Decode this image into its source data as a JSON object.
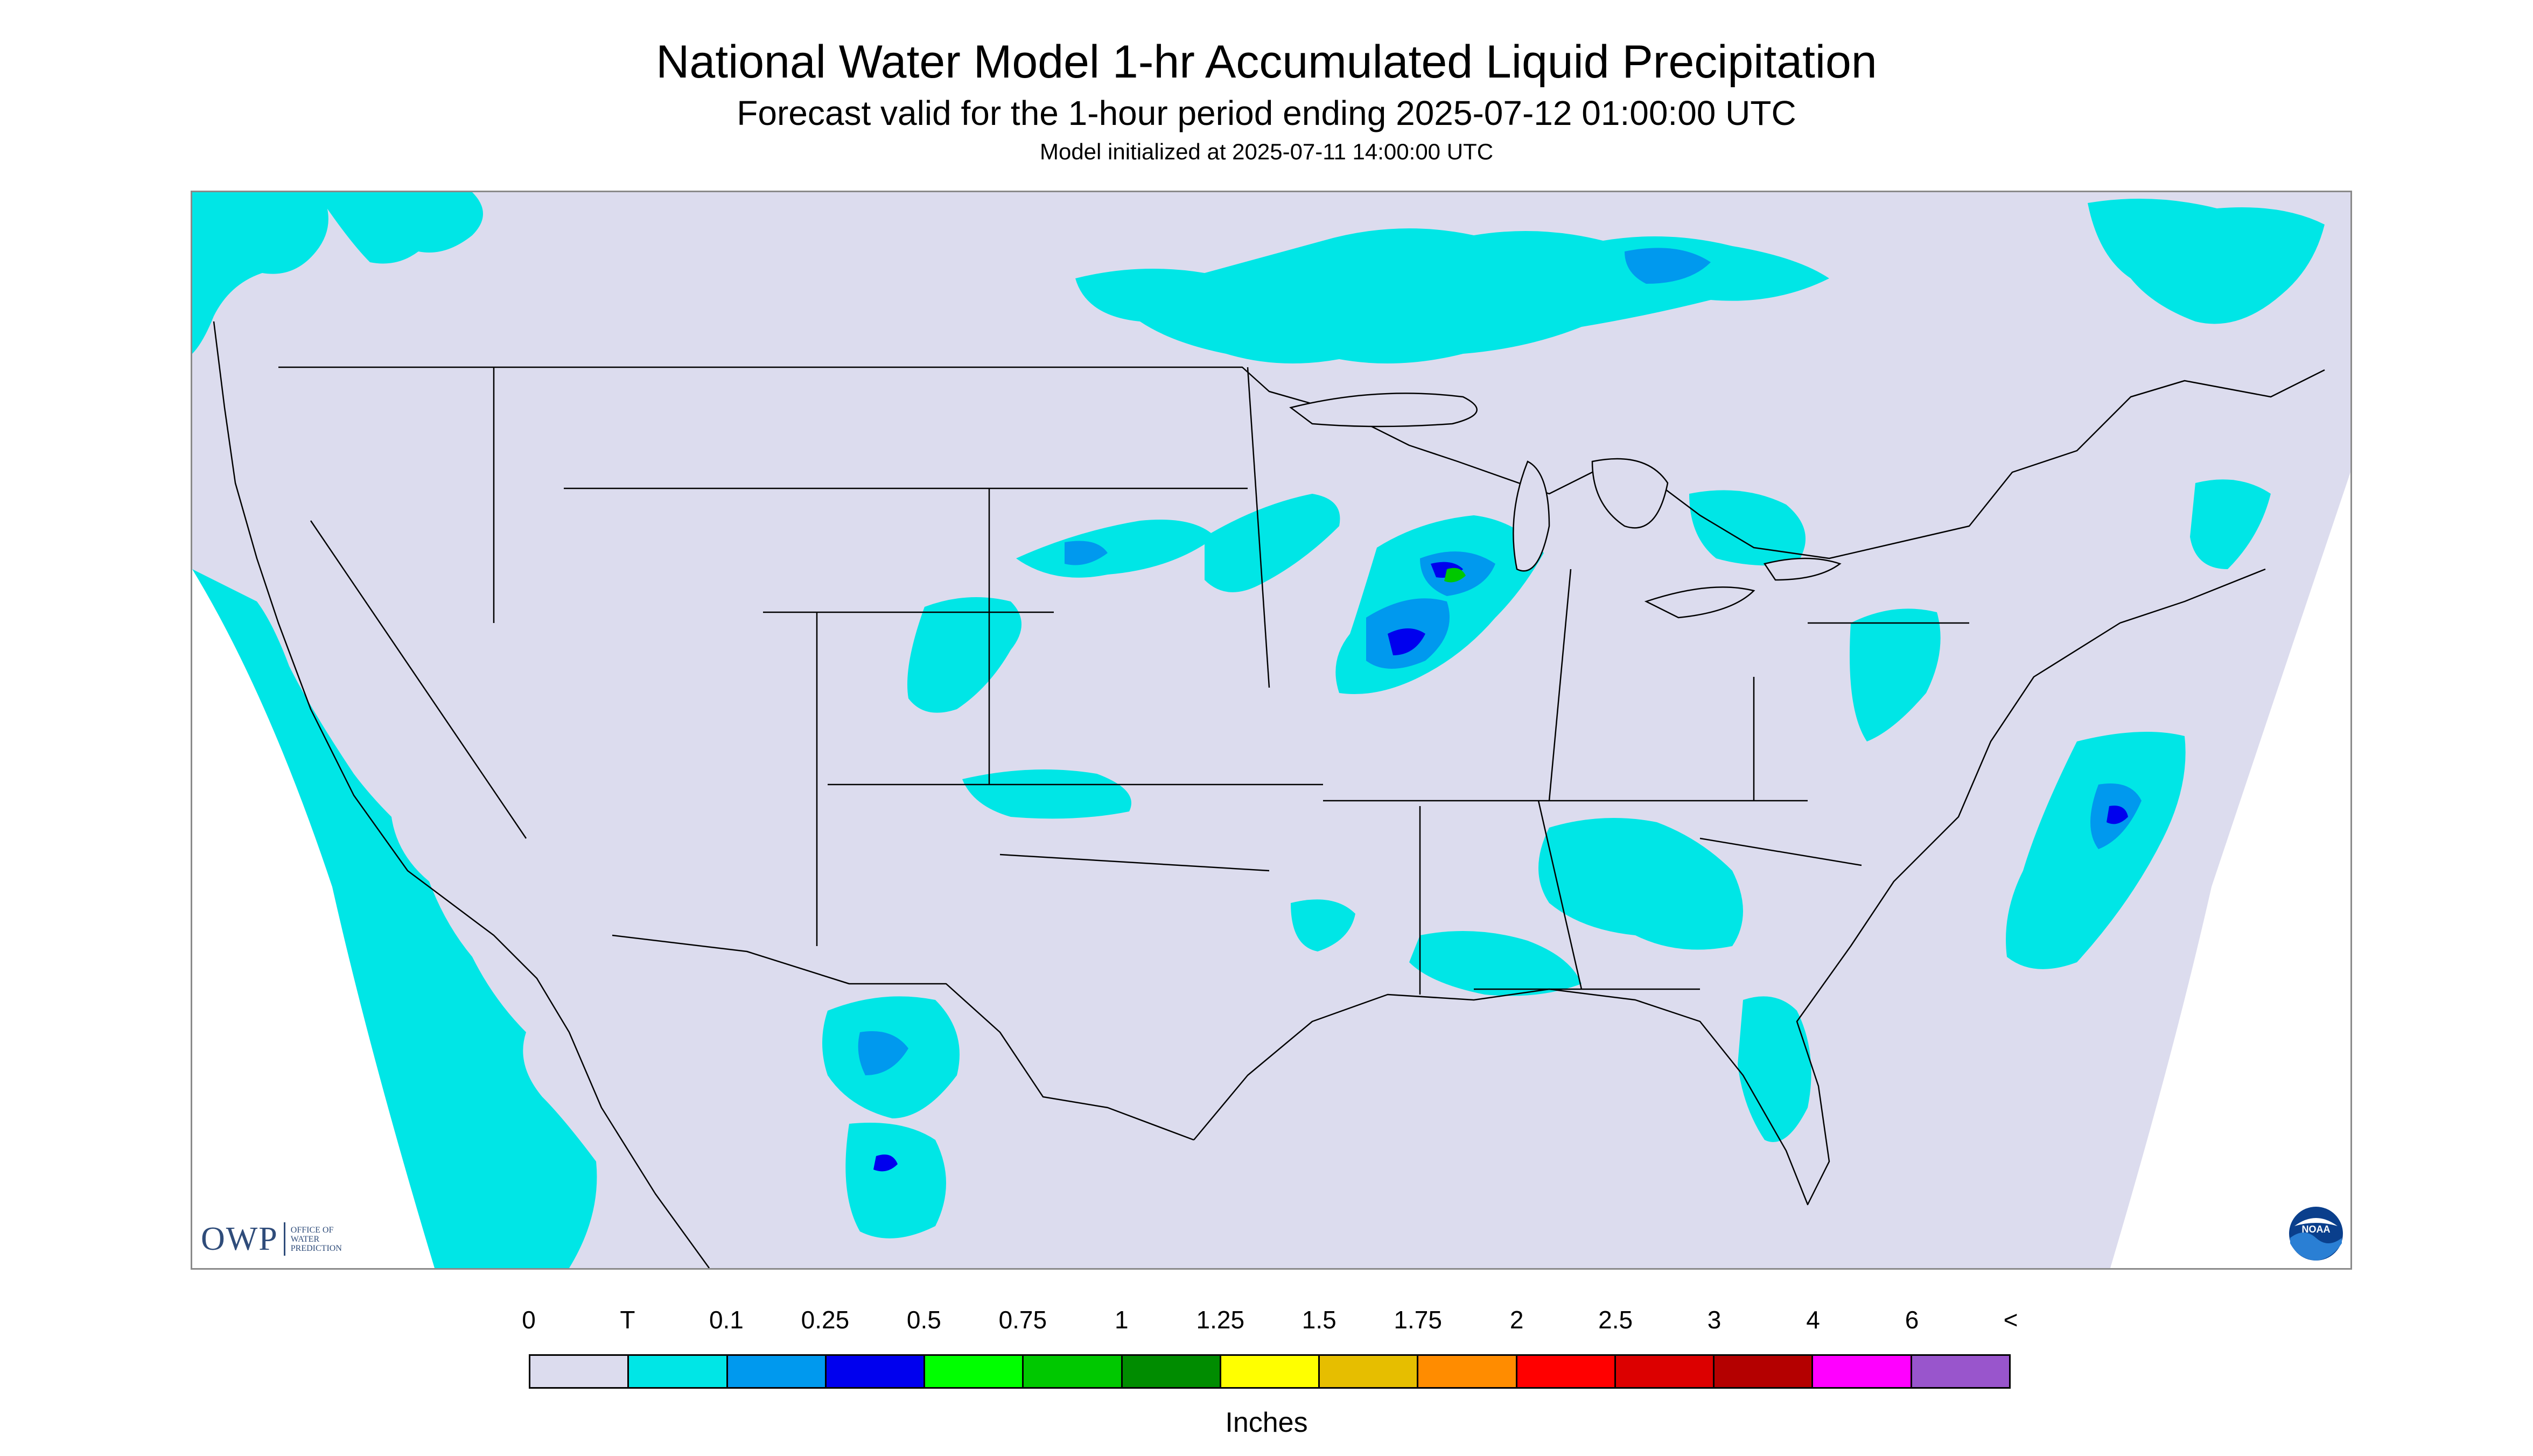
{
  "header": {
    "title": "National Water Model 1-hr Accumulated Liquid Precipitation",
    "subtitle": "Forecast valid for the 1-hour period ending 2025-07-12 01:00:00 UTC",
    "init_line": "Model initialized at 2025-07-11 14:00:00 UTC"
  },
  "map": {
    "background_color": "#dcdcee",
    "outside_color": "#ffffff",
    "boundary_color": "#000000"
  },
  "logos": {
    "owp_text": "OWP",
    "owp_sub_lines": [
      "OFFICE OF",
      "WATER",
      "PREDICTION"
    ],
    "noaa_text": "NOAA"
  },
  "legend": {
    "tick_labels": [
      "0",
      "T",
      "0.1",
      "0.25",
      "0.5",
      "0.75",
      "1",
      "1.25",
      "1.5",
      "1.75",
      "2",
      "2.5",
      "3",
      "4",
      "6",
      "<"
    ],
    "colors": [
      "#dcdcee",
      "#00e6e6",
      "#0099ee",
      "#0000ee",
      "#00ff00",
      "#00c800",
      "#008c00",
      "#ffff00",
      "#e6be00",
      "#ff8c00",
      "#ff0000",
      "#dc0000",
      "#b40000",
      "#ff00ff",
      "#9955cc"
    ],
    "unit": "Inches"
  }
}
